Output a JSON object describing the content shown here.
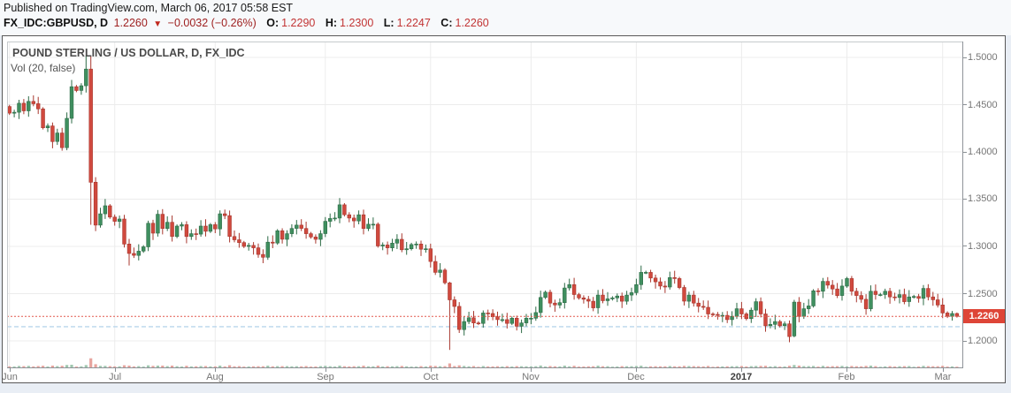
{
  "header": {
    "published_line": "Published on TradingView.com, March 06, 2017 05:58 EST",
    "symbol": "FX_IDC:GBPUSD, D",
    "last_price": "1.2260",
    "direction_icon": "▼",
    "change": "−0.0032 (−0.26%)",
    "ohlc": {
      "o_label": "O:",
      "o": "1.2290",
      "h_label": "H:",
      "h": "1.2300",
      "l_label": "L:",
      "l": "1.2247",
      "c_label": "C:",
      "c": "1.2260"
    }
  },
  "chart": {
    "title": "POUND STERLING / US DOLLAR, D, FX_IDC",
    "indicator": "Vol (20, false)",
    "price_badge": "1.2260"
  },
  "chart_data": {
    "type": "candlestick",
    "title": "POUND STERLING / US DOLLAR, D, FX_IDC",
    "symbol": "GBPUSD",
    "timeframe": "D",
    "indicator": "Vol (20, false)",
    "y_axis_ticks": [
      1.5,
      1.45,
      1.4,
      1.35,
      1.3,
      1.25,
      1.2
    ],
    "y_axis_visible_range": [
      1.185,
      1.515
    ],
    "x_axis_months": [
      {
        "label": "Jun",
        "index": 0
      },
      {
        "label": "Jul",
        "index": 22
      },
      {
        "label": "Aug",
        "index": 43
      },
      {
        "label": "Sep",
        "index": 66
      },
      {
        "label": "Oct",
        "index": 88
      },
      {
        "label": "Nov",
        "index": 109
      },
      {
        "label": "Dec",
        "index": 131
      },
      {
        "label": "2017",
        "index": 153,
        "strong": true
      },
      {
        "label": "Feb",
        "index": 175
      },
      {
        "label": "Mar",
        "index": 195
      }
    ],
    "first_open": 1.448,
    "closes": [
      1.441,
      1.442,
      1.4515,
      1.4435,
      1.4535,
      1.451,
      1.4455,
      1.4255,
      1.4275,
      1.411,
      1.42,
      1.4045,
      1.4355,
      1.469,
      1.465,
      1.47,
      1.4877,
      1.3679,
      1.3225,
      1.3345,
      1.343,
      1.331,
      1.3265,
      1.329,
      1.3025,
      1.2925,
      1.2905,
      1.295,
      1.2995,
      1.3245,
      1.314,
      1.334,
      1.319,
      1.3255,
      1.3105,
      1.3215,
      1.323,
      1.3105,
      1.3135,
      1.313,
      1.3215,
      1.316,
      1.323,
      1.3185,
      1.3345,
      1.3325,
      1.3105,
      1.307,
      1.304,
      1.3,
      1.301,
      1.2985,
      1.2915,
      1.2885,
      1.3045,
      1.3035,
      1.3165,
      1.3075,
      1.3135,
      1.319,
      1.3225,
      1.319,
      1.3135,
      1.31,
      1.3075,
      1.3135,
      1.3265,
      1.3295,
      1.33,
      1.344,
      1.3335,
      1.33,
      1.327,
      1.3335,
      1.319,
      1.3235,
      1.3235,
      1.3005,
      1.3015,
      1.2985,
      1.3035,
      1.3075,
      1.2965,
      1.2975,
      1.302,
      1.3025,
      1.297,
      1.2975,
      1.284,
      1.2725,
      1.275,
      1.2615,
      1.2435,
      1.2365,
      1.212,
      1.2205,
      1.2245,
      1.219,
      1.2185,
      1.2295,
      1.229,
      1.2255,
      1.2225,
      1.2225,
      1.2185,
      1.224,
      1.2155,
      1.219,
      1.224,
      1.224,
      1.23,
      1.246,
      1.2515,
      1.24,
      1.238,
      1.2405,
      1.256,
      1.2595,
      1.249,
      1.2455,
      1.244,
      1.242,
      1.235,
      1.2485,
      1.2425,
      1.2445,
      1.2455,
      1.2475,
      1.242,
      1.2485,
      1.251,
      1.2595,
      1.2725,
      1.2725,
      1.2665,
      1.2625,
      1.258,
      1.257,
      1.267,
      1.266,
      1.2565,
      1.242,
      1.2485,
      1.24,
      1.2365,
      1.2355,
      1.2285,
      1.228,
      1.227,
      1.227,
      1.2225,
      1.226,
      1.234,
      1.2285,
      1.2235,
      1.2325,
      1.2415,
      1.2285,
      1.216,
      1.2175,
      1.2205,
      1.216,
      1.218,
      1.2045,
      1.241,
      1.226,
      1.234,
      1.237,
      1.253,
      1.2525,
      1.263,
      1.259,
      1.255,
      1.248,
      1.258,
      1.266,
      1.2525,
      1.248,
      1.244,
      1.234,
      1.2525,
      1.249,
      1.249,
      1.2525,
      1.2465,
      1.246,
      1.249,
      1.2415,
      1.2465,
      1.247,
      1.245,
      1.2555,
      1.2465,
      1.2435,
      1.238,
      1.2295,
      1.226,
      1.229,
      1.226
    ],
    "overrides": {
      "11": {
        "l": 1.4013
      },
      "16": {
        "h": 1.5018
      },
      "17": {
        "o": 1.4877,
        "h": 1.5018,
        "l": 1.3229
      },
      "25": {
        "l": 1.2798
      },
      "92": {
        "o": 1.2614,
        "h": 1.2625,
        "l": 1.1905
      },
      "163": {
        "l": 1.1986
      },
      "164": {
        "o": 1.2052,
        "h": 1.2435,
        "l": 1.2038
      },
      "198": {
        "o": 1.229,
        "h": 1.23,
        "l": 1.2247
      }
    },
    "current_price": 1.226,
    "current_day": {
      "open": 1.229,
      "high": 1.23,
      "low": 1.2247,
      "close": 1.226
    },
    "blue_line_price": 1.215,
    "colors": {
      "up_body": "#3f8f5f",
      "up_border": "#2d6b46",
      "down_body": "#d0493e",
      "down_border": "#a8372e",
      "current_price_line": "#e2594d",
      "blue_line": "#b9d6ec",
      "badge_bg": "#de4537",
      "grid": "#ececec",
      "axis_text": "#757575"
    }
  }
}
